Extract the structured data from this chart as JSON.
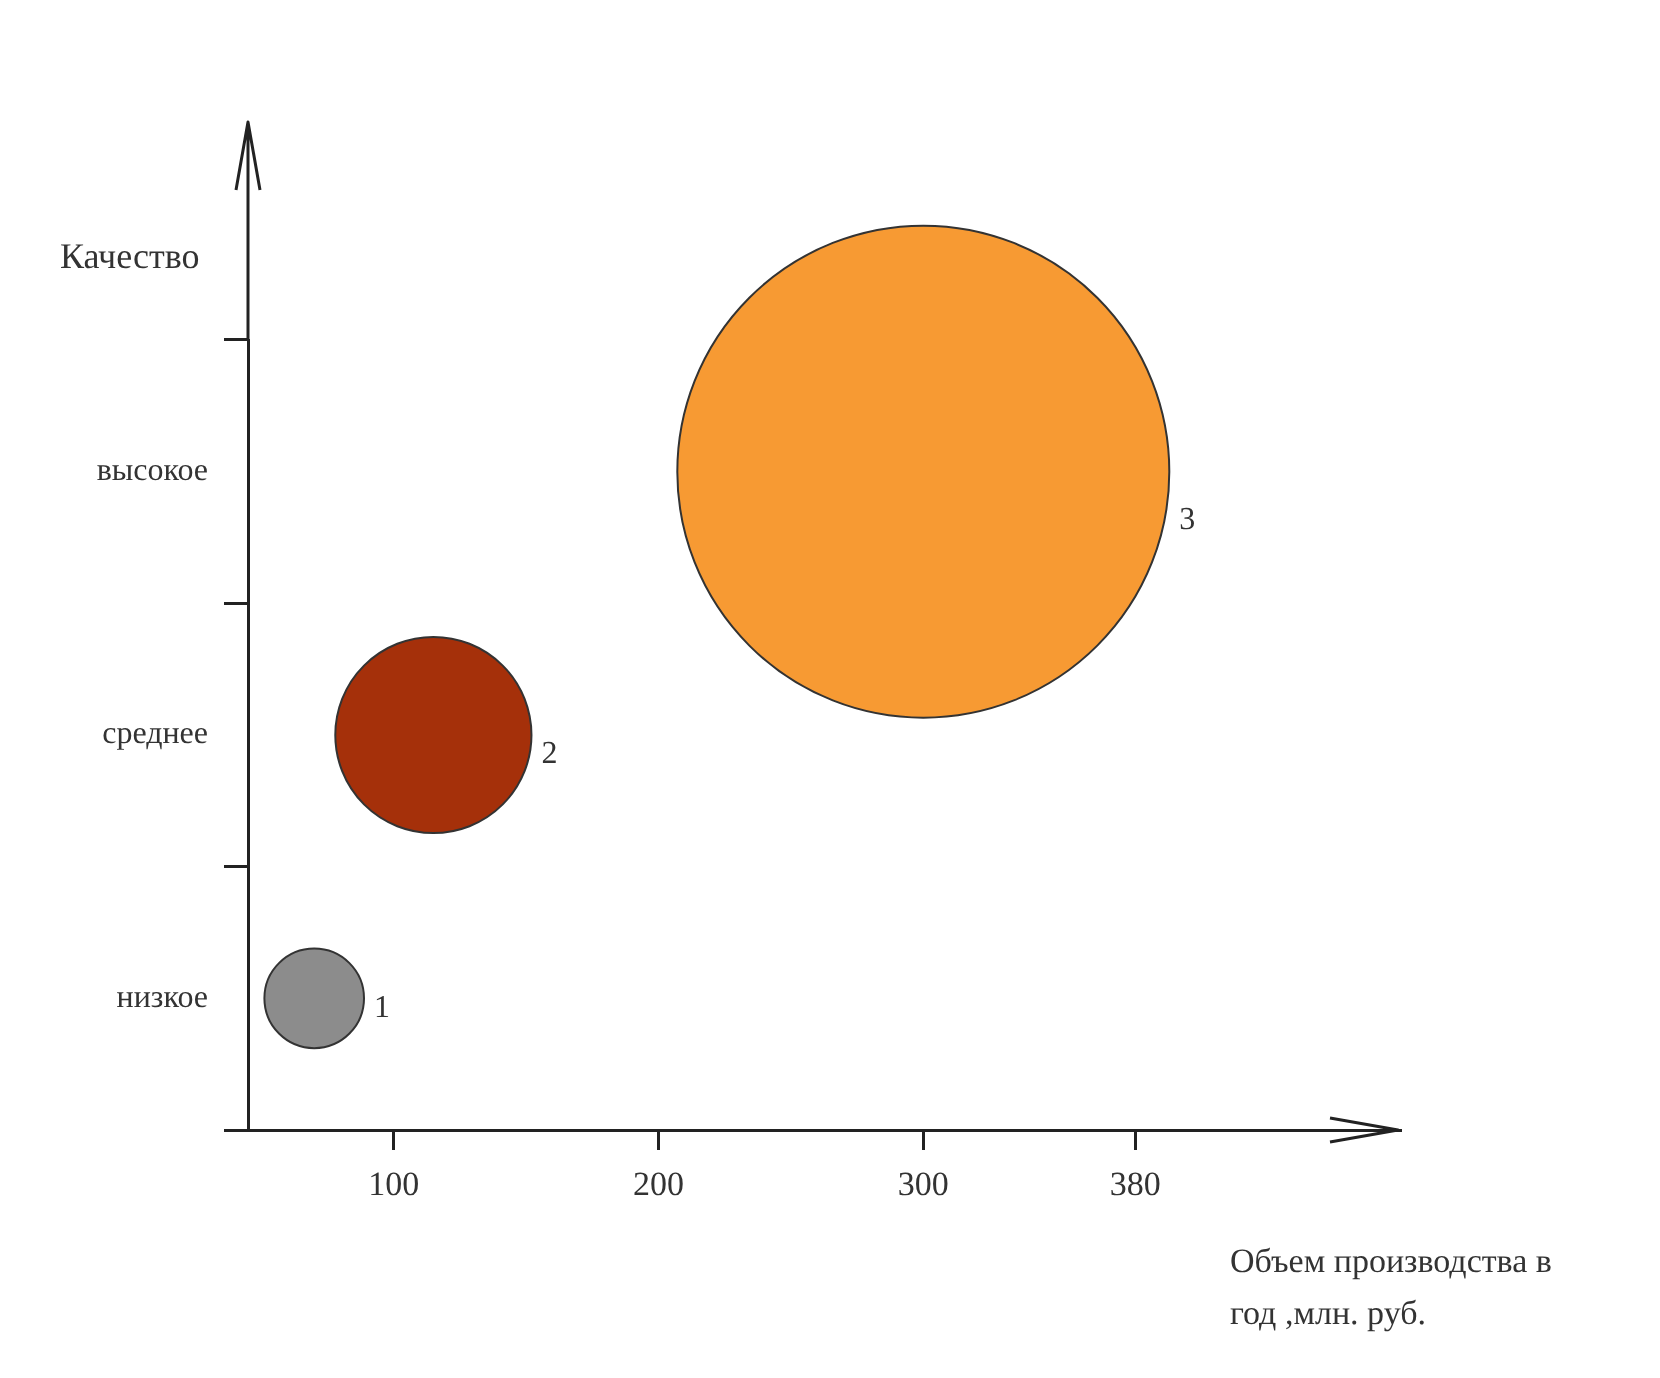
{
  "chart_data": {
    "type": "bubble",
    "orientation": "horizontal",
    "xlabel": "Объем производства в год ,млн. руб.",
    "ylabel": "Качество",
    "categories": [
      "высокое",
      "среднее",
      "низкое"
    ],
    "series": [
      {
        "name": "1",
        "color": "#8c8c8c",
        "values": [
          null,
          null,
          70
        ],
        "sizes": [
          null,
          null,
          0.041
        ]
      },
      {
        "name": "2",
        "color": "#a5300a",
        "values": [
          null,
          115,
          null
        ],
        "sizes": [
          null,
          0.159,
          null
        ]
      },
      {
        "name": "3",
        "color": "#f79a33",
        "values": [
          300,
          null,
          null
        ],
        "sizes": [
          1,
          null,
          null
        ]
      }
    ],
    "xlim": [
      45,
      480
    ],
    "xticks": [
      100,
      200,
      300,
      380
    ],
    "grid": false,
    "legend": false
  }
}
